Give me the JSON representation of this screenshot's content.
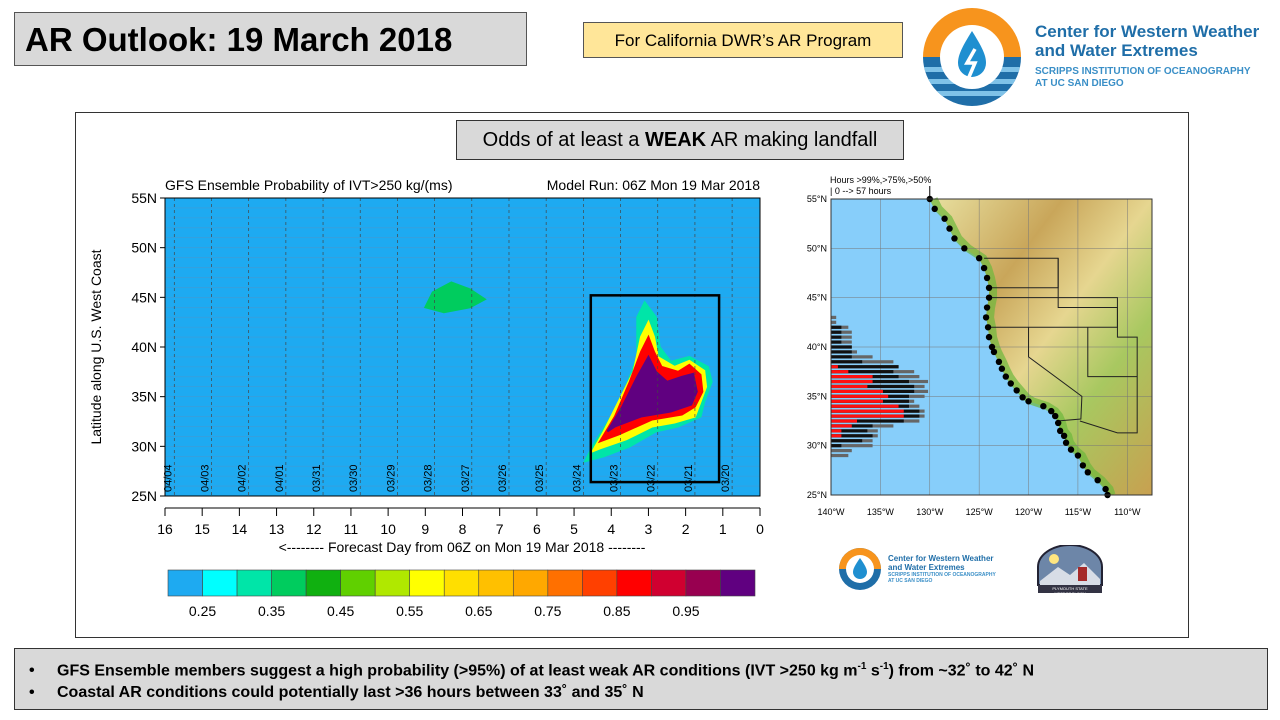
{
  "header": {
    "title": "AR Outlook: 19 March 2018",
    "program": "For California DWR’s AR Program"
  },
  "logo": {
    "line1": "Center for Western Weather",
    "line2": "and Water Extremes",
    "line3": "SCRIPPS INSTITUTION OF OCEANOGRAPHY",
    "line4": "AT UC SAN DIEGO"
  },
  "panel": {
    "heading_pre": "Odds of at least a ",
    "heading_bold": "WEAK",
    "heading_post": " AR making landfall"
  },
  "small_logos": {
    "cw3e_line1": "Center for Western Weather",
    "cw3e_line2": "and Water Extremes",
    "cw3e_line3": "SCRIPPS INSTITUTION OF OCEANOGRAPHY",
    "cw3e_line4": "AT UC SAN DIEGO",
    "psu": "PLYMOUTH STATE METEOROLOGY"
  },
  "bullets": [
    {
      "pre": "GFS Ensemble members suggest a high probability (>95%) of at least weak AR conditions (IVT >250 kg m",
      "sup1": "-1",
      "mid": " s",
      "sup2": "-1",
      "post": ") from ~32˚ to 42˚ N"
    },
    {
      "pre": "Coastal AR conditions could potentially last >36 hours between 33˚ and 35˚ N"
    }
  ],
  "chart_data": [
    {
      "type": "heatmap",
      "title": "GFS Ensemble Probability of IVT>250 kg/(ms)",
      "subtitle": "Model Run: 06Z Mon 19 Mar 2018",
      "xlabel": "<-------- Forecast Day from 06Z on Mon 19 Mar 2018 --------",
      "ylabel": "Latitude along U.S. West Coast",
      "xlim": [
        16,
        0
      ],
      "ylim": [
        25,
        55
      ],
      "xticks": [
        "16",
        "15",
        "14",
        "13",
        "12",
        "11",
        "10",
        "9",
        "8",
        "7",
        "6",
        "5",
        "4",
        "3",
        "2",
        "1",
        "0"
      ],
      "yticks": [
        "55N",
        "50N",
        "45N",
        "40N",
        "35N",
        "30N",
        "25N"
      ],
      "date_lines": [
        {
          "day": 15.75,
          "label": "04/04"
        },
        {
          "day": 14.75,
          "label": "04/03"
        },
        {
          "day": 13.75,
          "label": "04/02"
        },
        {
          "day": 12.75,
          "label": "04/01"
        },
        {
          "day": 11.75,
          "label": "03/31"
        },
        {
          "day": 10.75,
          "label": "03/30"
        },
        {
          "day": 9.75,
          "label": "03/29"
        },
        {
          "day": 8.75,
          "label": "03/28"
        },
        {
          "day": 7.75,
          "label": "03/27"
        },
        {
          "day": 6.75,
          "label": "03/26"
        },
        {
          "day": 5.75,
          "label": "03/25"
        },
        {
          "day": 4.75,
          "label": "03/24"
        },
        {
          "day": 3.75,
          "label": "03/23"
        },
        {
          "day": 2.75,
          "label": "03/22"
        },
        {
          "day": 1.75,
          "label": "03/21"
        },
        {
          "day": 0.75,
          "label": "03/20"
        }
      ],
      "background_color": "#1eaaf1",
      "regions": [
        {
          "prob": 0.4,
          "color": "#00cc5e",
          "points": [
            [
              9,
              44
            ],
            [
              8.8,
              45.5
            ],
            [
              8.3,
              46.5
            ],
            [
              7.8,
              45.8
            ],
            [
              7.4,
              44.8
            ],
            [
              7.8,
              44
            ],
            [
              8.5,
              43.5
            ]
          ]
        },
        {
          "prob": 0.35,
          "color": "#00e5a8",
          "points": [
            [
              4.7,
              28.5
            ],
            [
              4.5,
              30
            ],
            [
              4.0,
              33
            ],
            [
              3.6,
              36
            ],
            [
              3.3,
              39
            ],
            [
              3.3,
              43
            ],
            [
              3.1,
              44.5
            ],
            [
              2.8,
              43
            ],
            [
              2.7,
              40
            ],
            [
              2.4,
              38.5
            ],
            [
              1.9,
              39
            ],
            [
              1.4,
              38
            ],
            [
              1.3,
              36.5
            ],
            [
              1.5,
              34.5
            ],
            [
              1.6,
              33
            ],
            [
              2.2,
              32
            ],
            [
              2.8,
              31.5
            ],
            [
              3.5,
              30
            ],
            [
              4.2,
              29
            ]
          ]
        },
        {
          "prob": 0.6,
          "color": "#ffff00",
          "points": [
            [
              4.5,
              29.5
            ],
            [
              4.2,
              31.5
            ],
            [
              3.8,
              34.5
            ],
            [
              3.4,
              37.5
            ],
            [
              3.2,
              41
            ],
            [
              3.0,
              42.5
            ],
            [
              2.85,
              41
            ],
            [
              2.75,
              39
            ],
            [
              2.3,
              38
            ],
            [
              1.9,
              38.6
            ],
            [
              1.5,
              37.6
            ],
            [
              1.45,
              36
            ],
            [
              1.65,
              34
            ],
            [
              1.75,
              33
            ],
            [
              2.3,
              32.4
            ],
            [
              2.9,
              32
            ],
            [
              3.6,
              30.7
            ],
            [
              4.3,
              29.8
            ]
          ]
        },
        {
          "prob": 0.85,
          "color": "#ff0000",
          "points": [
            [
              4.3,
              30.5
            ],
            [
              3.9,
              33
            ],
            [
              3.5,
              36.5
            ],
            [
              3.2,
              39.5
            ],
            [
              3.0,
              41
            ],
            [
              2.85,
              39.5
            ],
            [
              2.65,
              38
            ],
            [
              2.2,
              37.5
            ],
            [
              1.9,
              38.2
            ],
            [
              1.6,
              37.2
            ],
            [
              1.55,
              35.5
            ],
            [
              1.75,
              34
            ],
            [
              2.1,
              33.2
            ],
            [
              2.9,
              32.7
            ],
            [
              3.8,
              31.2
            ]
          ]
        },
        {
          "prob": 0.98,
          "color": "#600080",
          "points": [
            [
              4.1,
              31.5
            ],
            [
              3.7,
              34
            ],
            [
              3.3,
              37
            ],
            [
              3.0,
              39
            ],
            [
              2.8,
              37.5
            ],
            [
              2.5,
              36.5
            ],
            [
              2.1,
              37
            ],
            [
              1.8,
              37.3
            ],
            [
              1.7,
              35.5
            ],
            [
              1.85,
              34.2
            ],
            [
              2.4,
              33.5
            ],
            [
              3.2,
              33
            ],
            [
              3.9,
              32
            ]
          ]
        }
      ],
      "highlight_box": {
        "day": [
          4.55,
          1.1
        ],
        "lat": [
          26.4,
          45.2
        ]
      },
      "colorbar": {
        "colors": [
          "#1eaaf1",
          "#00ffff",
          "#00e5a8",
          "#00cc5e",
          "#10b010",
          "#60d000",
          "#b0e800",
          "#ffff00",
          "#ffdf00",
          "#ffc000",
          "#ffa800",
          "#ff7000",
          "#ff4000",
          "#ff0000",
          "#d00030",
          "#980050",
          "#600080"
        ],
        "labels": [
          "0.25",
          "0.35",
          "0.45",
          "0.55",
          "0.65",
          "0.75",
          "0.85",
          "0.95"
        ]
      }
    },
    {
      "type": "bar",
      "title": "Hours >99%,>75%,>50%",
      "subtitle": "| 0 --> 57 hours",
      "xlim": [
        -140,
        -107.5
      ],
      "ylim": [
        25,
        55
      ],
      "xticks": [
        "140°W",
        "135°W",
        "130°W",
        "125°W",
        "120°W",
        "115°W",
        "110°W"
      ],
      "yticks": [
        "55°N",
        "50°N",
        "45°N",
        "40°N",
        "35°N",
        "30°N",
        "25°N"
      ],
      "max_hours": 57,
      "series_names": [
        ">99%",
        ">75%",
        ">50%"
      ],
      "series_colors": [
        "#ff1010",
        "#111111",
        "#666666"
      ],
      "lat": [
        43,
        42.5,
        42,
        41.5,
        41,
        40.5,
        40,
        39.5,
        39,
        38.5,
        38,
        37.5,
        37,
        36.5,
        36,
        35.5,
        35,
        34.5,
        34,
        33.5,
        33,
        32.5,
        32,
        31.5,
        31,
        30.5,
        30,
        29.5,
        29
      ],
      "hours": [
        [
          0,
          0,
          3
        ],
        [
          0,
          0,
          3
        ],
        [
          0,
          6,
          10
        ],
        [
          0,
          6,
          12
        ],
        [
          0,
          6,
          12
        ],
        [
          0,
          6,
          12
        ],
        [
          0,
          12,
          12
        ],
        [
          0,
          12,
          15
        ],
        [
          0,
          12,
          24
        ],
        [
          0,
          18,
          36
        ],
        [
          4,
          39,
          39
        ],
        [
          10,
          36,
          48
        ],
        [
          24,
          39,
          51
        ],
        [
          24,
          45,
          56
        ],
        [
          21,
          48,
          54
        ],
        [
          30,
          48,
          56
        ],
        [
          33,
          45,
          54
        ],
        [
          30,
          45,
          48
        ],
        [
          39,
          45,
          51
        ],
        [
          42,
          51,
          54
        ],
        [
          42,
          51,
          54
        ],
        [
          15,
          42,
          51
        ],
        [
          12,
          24,
          36
        ],
        [
          6,
          21,
          27
        ],
        [
          6,
          24,
          27
        ],
        [
          0,
          18,
          24
        ],
        [
          0,
          6,
          24
        ],
        [
          0,
          0,
          12
        ],
        [
          0,
          0,
          10
        ]
      ],
      "coast_points": [
        [
          -130,
          55
        ],
        [
          -129.5,
          54
        ],
        [
          -128.5,
          53
        ],
        [
          -128,
          52
        ],
        [
          -127.5,
          51
        ],
        [
          -126.5,
          50
        ],
        [
          -125,
          49
        ],
        [
          -124.5,
          48
        ],
        [
          -124.2,
          47
        ],
        [
          -124,
          46
        ],
        [
          -124,
          45
        ],
        [
          -124.2,
          44
        ],
        [
          -124.3,
          43
        ],
        [
          -124.1,
          42
        ],
        [
          -124,
          41
        ],
        [
          -123.7,
          40
        ],
        [
          -123.5,
          39.5
        ],
        [
          -123,
          38.5
        ],
        [
          -122.7,
          37.8
        ],
        [
          -122.3,
          37
        ],
        [
          -121.8,
          36.3
        ],
        [
          -121.2,
          35.6
        ],
        [
          -120.6,
          34.9
        ],
        [
          -120,
          34.5
        ],
        [
          -118.5,
          34
        ],
        [
          -117.7,
          33.5
        ],
        [
          -117.3,
          33
        ],
        [
          -117,
          32.3
        ],
        [
          -116.8,
          31.5
        ],
        [
          -116.4,
          31
        ],
        [
          -116.2,
          30.3
        ],
        [
          -115.7,
          29.6
        ],
        [
          -115,
          29
        ],
        [
          -114.5,
          28
        ],
        [
          -114,
          27.3
        ],
        [
          -113,
          26.5
        ],
        [
          -112.2,
          25.6
        ],
        [
          -112,
          25
        ]
      ]
    }
  ]
}
